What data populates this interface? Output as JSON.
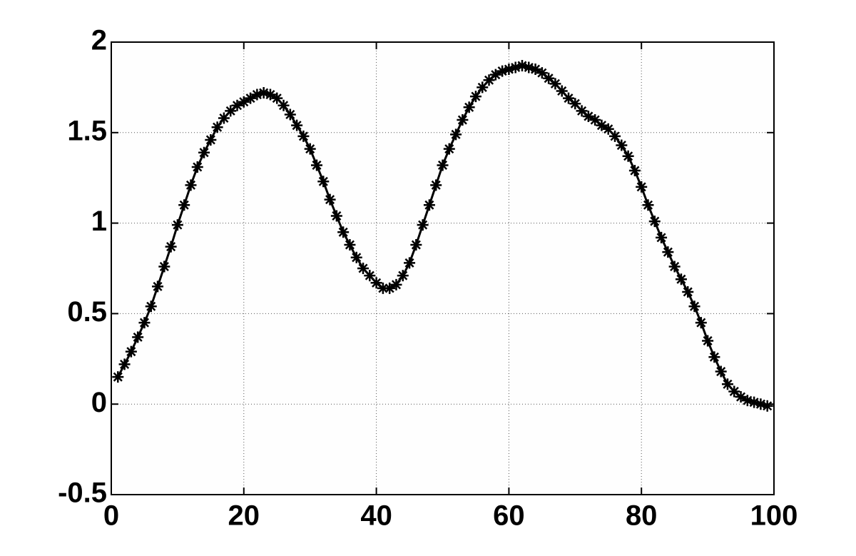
{
  "chart_data": {
    "type": "line",
    "marker": "asterisk",
    "color": "#000000",
    "grid": true,
    "x": [
      1,
      2,
      3,
      4,
      5,
      6,
      7,
      8,
      9,
      10,
      11,
      12,
      13,
      14,
      15,
      16,
      17,
      18,
      19,
      20,
      21,
      22,
      23,
      24,
      25,
      26,
      27,
      28,
      29,
      30,
      31,
      32,
      33,
      34,
      35,
      36,
      37,
      38,
      39,
      40,
      41,
      42,
      43,
      44,
      45,
      46,
      47,
      48,
      49,
      50,
      51,
      52,
      53,
      54,
      55,
      56,
      57,
      58,
      59,
      60,
      61,
      62,
      63,
      64,
      65,
      66,
      67,
      68,
      69,
      70,
      71,
      72,
      73,
      74,
      75,
      76,
      77,
      78,
      79,
      80,
      81,
      82,
      83,
      84,
      85,
      86,
      87,
      88,
      89,
      90,
      91,
      92,
      93,
      94,
      95,
      96,
      97,
      98,
      99
    ],
    "values": [
      0.15,
      0.22,
      0.29,
      0.37,
      0.45,
      0.54,
      0.65,
      0.76,
      0.87,
      0.99,
      1.1,
      1.21,
      1.31,
      1.39,
      1.46,
      1.53,
      1.58,
      1.62,
      1.65,
      1.67,
      1.69,
      1.71,
      1.72,
      1.71,
      1.69,
      1.65,
      1.6,
      1.54,
      1.48,
      1.41,
      1.32,
      1.23,
      1.13,
      1.04,
      0.95,
      0.88,
      0.81,
      0.75,
      0.71,
      0.67,
      0.64,
      0.64,
      0.66,
      0.71,
      0.78,
      0.88,
      0.99,
      1.1,
      1.21,
      1.32,
      1.41,
      1.49,
      1.57,
      1.64,
      1.7,
      1.75,
      1.79,
      1.82,
      1.84,
      1.85,
      1.86,
      1.87,
      1.86,
      1.85,
      1.83,
      1.8,
      1.77,
      1.73,
      1.69,
      1.66,
      1.62,
      1.59,
      1.57,
      1.54,
      1.52,
      1.48,
      1.43,
      1.37,
      1.29,
      1.2,
      1.1,
      1.01,
      0.92,
      0.84,
      0.76,
      0.69,
      0.62,
      0.54,
      0.45,
      0.35,
      0.26,
      0.18,
      0.11,
      0.07,
      0.04,
      0.02,
      0.01,
      0.0,
      -0.01
    ],
    "xlim": [
      0,
      100
    ],
    "xticks": [
      0,
      20,
      40,
      60,
      80,
      100
    ],
    "ylim": [
      -0.5,
      2
    ],
    "yticks": [
      -0.5,
      0,
      0.5,
      1,
      1.5,
      2
    ]
  }
}
